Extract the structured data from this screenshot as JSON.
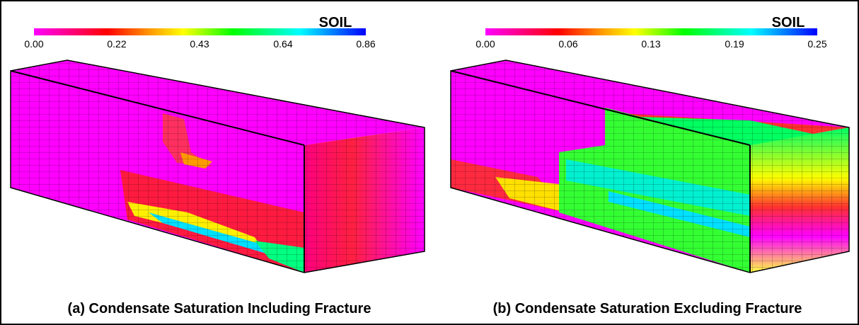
{
  "panels": [
    {
      "colorbar": {
        "title": "SOIL",
        "ticks": [
          "0.00",
          "0.22",
          "0.43",
          "0.64",
          "0.86"
        ]
      },
      "caption": "(a) Condensate Saturation Including Fracture"
    },
    {
      "colorbar": {
        "title": "SOIL",
        "ticks": [
          "0.00",
          "0.06",
          "0.13",
          "0.19",
          "0.25"
        ]
      },
      "caption": "(b) Condensate Saturation Excluding Fracture"
    }
  ]
}
